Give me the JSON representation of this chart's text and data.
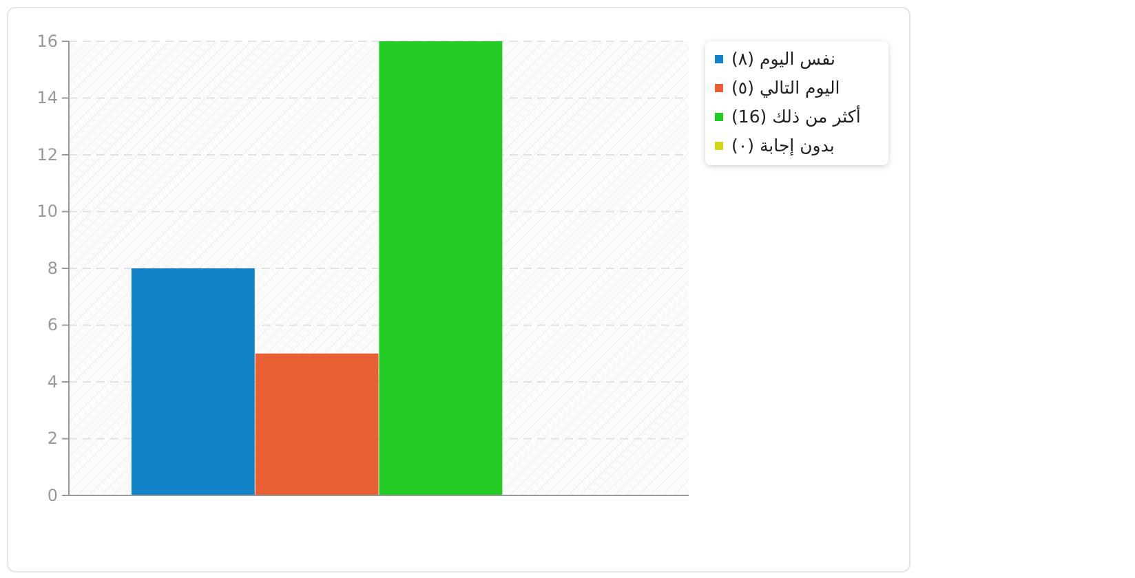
{
  "chart_data": {
    "type": "bar",
    "categories": [
      null
    ],
    "series": [
      {
        "name": "نفس اليوم (٨)",
        "color": "#1283c9",
        "values": [
          8
        ]
      },
      {
        "name": "اليوم التالي (٥)",
        "color": "#e85f33",
        "values": [
          5
        ]
      },
      {
        "name": "أكثر من ذلك (16)",
        "color": "#22cc22",
        "values": [
          16
        ]
      },
      {
        "name": "بدون إجابة (٠)",
        "color": "#d6d619",
        "values": [
          0
        ]
      }
    ],
    "ylim": [
      0,
      16
    ],
    "yticks": [
      0,
      2,
      4,
      6,
      8,
      10,
      12,
      14,
      16
    ],
    "grid": "y",
    "legend": "right"
  }
}
